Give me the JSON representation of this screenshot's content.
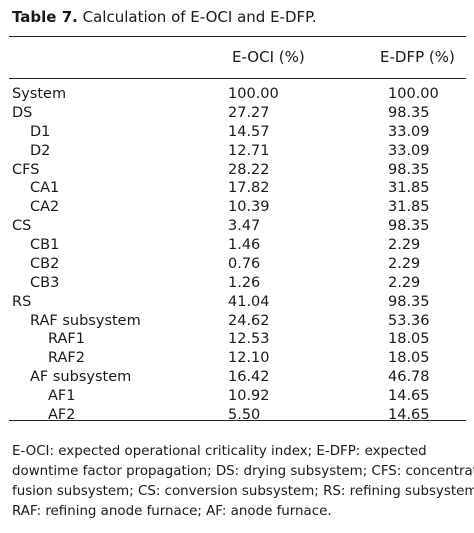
{
  "table": {
    "caption_number": "Table 7.",
    "caption_text": "Calculation of E-OCI and E-DFP.",
    "columns": [
      "E-OCI (%)",
      "E-DFP (%)"
    ],
    "rows": [
      {
        "label": "System",
        "level": 0,
        "eoci": "100.00",
        "edfp": "100.00"
      },
      {
        "label": "DS",
        "level": 0,
        "eoci": "27.27",
        "edfp": "98.35"
      },
      {
        "label": "D1",
        "level": 1,
        "eoci": "14.57",
        "edfp": "33.09"
      },
      {
        "label": "D2",
        "level": 1,
        "eoci": "12.71",
        "edfp": "33.09"
      },
      {
        "label": "CFS",
        "level": 0,
        "eoci": "28.22",
        "edfp": "98.35"
      },
      {
        "label": "CA1",
        "level": 1,
        "eoci": "17.82",
        "edfp": "31.85"
      },
      {
        "label": "CA2",
        "level": 1,
        "eoci": "10.39",
        "edfp": "31.85"
      },
      {
        "label": "CS",
        "level": 0,
        "eoci": "3.47",
        "edfp": "98.35"
      },
      {
        "label": "CB1",
        "level": 1,
        "eoci": "1.46",
        "edfp": "2.29"
      },
      {
        "label": "CB2",
        "level": 1,
        "eoci": "0.76",
        "edfp": "2.29"
      },
      {
        "label": "CB3",
        "level": 1,
        "eoci": "1.26",
        "edfp": "2.29"
      },
      {
        "label": "RS",
        "level": 0,
        "eoci": "41.04",
        "edfp": "98.35"
      },
      {
        "label": "RAF subsystem",
        "level": 1,
        "eoci": "24.62",
        "edfp": "53.36"
      },
      {
        "label": "RAF1",
        "level": 2,
        "eoci": "12.53",
        "edfp": "18.05"
      },
      {
        "label": "RAF2",
        "level": 2,
        "eoci": "12.10",
        "edfp": "18.05"
      },
      {
        "label": "AF subsystem",
        "level": 1,
        "eoci": "16.42",
        "edfp": "46.78"
      },
      {
        "label": "AF1",
        "level": 2,
        "eoci": "10.92",
        "edfp": "14.65"
      },
      {
        "label": "AF2",
        "level": 2,
        "eoci": "5.50",
        "edfp": "14.65"
      }
    ],
    "footnote_lines": [
      "E-OCI: expected operational criticality index; E-DFP: expected",
      "downtime factor propagation; DS: drying subsystem; CFS: concentrate",
      "fusion subsystem; CS: conversion subsystem; RS: refining subsystem;",
      "RAF: refining anode furnace; AF: anode furnace."
    ]
  }
}
